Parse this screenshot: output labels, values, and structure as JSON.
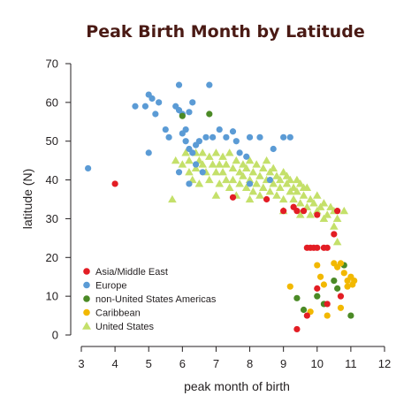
{
  "chart_data": {
    "type": "scatter",
    "title": "Peak Birth Month by Latitude",
    "xlabel": "peak month of birth",
    "ylabel": "latitude (N)",
    "xlim": [
      3,
      12
    ],
    "ylim": [
      0,
      70
    ],
    "xticks": [
      3,
      4,
      5,
      6,
      7,
      8,
      9,
      10,
      11,
      12
    ],
    "yticks": [
      0,
      10,
      20,
      30,
      40,
      50,
      60,
      70
    ],
    "grid": false,
    "legend": "bottom-left",
    "series": [
      {
        "name": "Asia/Middle East",
        "color": "#e31d24",
        "marker": "circle",
        "points": [
          [
            4.0,
            39
          ],
          [
            7.5,
            35.5
          ],
          [
            8.5,
            35
          ],
          [
            9.0,
            32
          ],
          [
            9.3,
            33
          ],
          [
            9.4,
            32
          ],
          [
            9.6,
            32
          ],
          [
            10.0,
            31
          ],
          [
            10.6,
            32
          ],
          [
            10.5,
            26
          ],
          [
            9.7,
            22.5
          ],
          [
            9.8,
            22.5
          ],
          [
            9.9,
            22.5
          ],
          [
            10.0,
            22.5
          ],
          [
            10.2,
            22.5
          ],
          [
            10.3,
            22.5
          ],
          [
            10.0,
            12
          ],
          [
            9.7,
            5
          ],
          [
            9.4,
            1.5
          ],
          [
            10.3,
            8
          ],
          [
            10.7,
            10
          ]
        ]
      },
      {
        "name": "Europe",
        "color": "#5b9bd5",
        "marker": "circle",
        "points": [
          [
            3.2,
            43
          ],
          [
            4.6,
            59
          ],
          [
            4.9,
            59
          ],
          [
            5.0,
            62
          ],
          [
            5.1,
            61
          ],
          [
            5.2,
            57
          ],
          [
            5.3,
            60
          ],
          [
            5.5,
            53
          ],
          [
            5.6,
            51
          ],
          [
            5.8,
            59
          ],
          [
            5.9,
            64.5
          ],
          [
            5.9,
            58
          ],
          [
            6.2,
            57.5
          ],
          [
            6.3,
            60
          ],
          [
            6.0,
            52
          ],
          [
            6.1,
            50
          ],
          [
            6.2,
            48
          ],
          [
            6.3,
            47
          ],
          [
            6.4,
            49
          ],
          [
            6.5,
            50
          ],
          [
            6.7,
            51
          ],
          [
            6.9,
            51
          ],
          [
            7.1,
            53
          ],
          [
            7.3,
            51
          ],
          [
            7.5,
            52.5
          ],
          [
            7.6,
            50
          ],
          [
            7.7,
            47
          ],
          [
            7.9,
            46
          ],
          [
            8.0,
            51
          ],
          [
            8.3,
            51
          ],
          [
            8.7,
            48
          ],
          [
            9.0,
            51
          ],
          [
            9.2,
            51
          ],
          [
            6.8,
            64.5
          ],
          [
            6.0,
            57
          ],
          [
            5.9,
            42
          ],
          [
            6.2,
            39
          ],
          [
            6.1,
            53
          ],
          [
            6.4,
            44
          ],
          [
            6.6,
            42
          ],
          [
            5.0,
            47
          ],
          [
            8.0,
            39
          ],
          [
            8.6,
            40
          ]
        ]
      },
      {
        "name": "non-United States Americas",
        "color": "#4b8a26",
        "marker": "circle",
        "points": [
          [
            6.0,
            56.5
          ],
          [
            6.8,
            57
          ],
          [
            9.4,
            9.5
          ],
          [
            9.6,
            6.5
          ],
          [
            10.0,
            10
          ],
          [
            10.2,
            8
          ],
          [
            10.5,
            14
          ],
          [
            10.6,
            12
          ],
          [
            10.8,
            18
          ],
          [
            11.0,
            5
          ]
        ]
      },
      {
        "name": "Caribbean",
        "color": "#f2b800",
        "marker": "circle",
        "points": [
          [
            9.2,
            12.5
          ],
          [
            9.8,
            6
          ],
          [
            10.0,
            18
          ],
          [
            10.1,
            15
          ],
          [
            10.2,
            13
          ],
          [
            10.3,
            5
          ],
          [
            10.5,
            18.5
          ],
          [
            10.6,
            17.5
          ],
          [
            10.7,
            18.5
          ],
          [
            10.8,
            16
          ],
          [
            10.9,
            14
          ],
          [
            11.0,
            15
          ],
          [
            11.05,
            13
          ],
          [
            11.1,
            14
          ],
          [
            10.7,
            7
          ],
          [
            10.9,
            12.5
          ]
        ]
      },
      {
        "name": "United States",
        "color": "#c4e06a",
        "marker": "triangle",
        "points": [
          [
            5.7,
            35
          ],
          [
            5.8,
            45
          ],
          [
            6.0,
            44
          ],
          [
            6.1,
            47
          ],
          [
            6.2,
            42
          ],
          [
            6.2,
            45
          ],
          [
            6.3,
            40
          ],
          [
            6.4,
            43
          ],
          [
            6.4,
            47
          ],
          [
            6.5,
            45
          ],
          [
            6.5,
            39
          ],
          [
            6.6,
            44
          ],
          [
            6.6,
            47
          ],
          [
            6.7,
            42
          ],
          [
            6.8,
            46
          ],
          [
            6.8,
            40
          ],
          [
            6.9,
            44
          ],
          [
            7.0,
            42
          ],
          [
            7.0,
            47
          ],
          [
            7.1,
            44
          ],
          [
            7.1,
            39
          ],
          [
            7.2,
            46
          ],
          [
            7.2,
            42
          ],
          [
            7.3,
            40
          ],
          [
            7.3,
            44
          ],
          [
            7.4,
            47
          ],
          [
            7.4,
            38
          ],
          [
            7.5,
            43
          ],
          [
            7.5,
            40
          ],
          [
            7.6,
            45
          ],
          [
            7.6,
            36
          ],
          [
            7.7,
            42
          ],
          [
            7.7,
            39
          ],
          [
            7.8,
            44
          ],
          [
            7.8,
            41
          ],
          [
            7.9,
            38
          ],
          [
            7.9,
            43
          ],
          [
            8.0,
            40
          ],
          [
            8.0,
            45
          ],
          [
            8.1,
            42
          ],
          [
            8.1,
            37
          ],
          [
            8.2,
            39
          ],
          [
            8.2,
            44
          ],
          [
            8.3,
            41
          ],
          [
            8.3,
            36
          ],
          [
            8.4,
            43
          ],
          [
            8.4,
            38
          ],
          [
            8.5,
            40
          ],
          [
            8.5,
            45
          ],
          [
            8.6,
            42
          ],
          [
            8.6,
            37
          ],
          [
            8.7,
            39
          ],
          [
            8.7,
            43
          ],
          [
            8.8,
            41
          ],
          [
            8.8,
            36
          ],
          [
            8.9,
            40
          ],
          [
            8.9,
            38
          ],
          [
            9.0,
            42
          ],
          [
            9.0,
            35
          ],
          [
            9.1,
            39
          ],
          [
            9.1,
            41
          ],
          [
            9.2,
            37
          ],
          [
            9.2,
            40
          ],
          [
            9.3,
            38
          ],
          [
            9.3,
            35
          ],
          [
            9.4,
            40
          ],
          [
            9.4,
            37
          ],
          [
            9.5,
            39
          ],
          [
            9.5,
            34
          ],
          [
            9.6,
            38
          ],
          [
            9.6,
            36
          ],
          [
            9.7,
            33
          ],
          [
            9.7,
            38
          ],
          [
            9.8,
            35
          ],
          [
            9.8,
            31
          ],
          [
            9.9,
            34
          ],
          [
            10.0,
            36
          ],
          [
            10.0,
            32
          ],
          [
            10.1,
            33
          ],
          [
            10.2,
            30
          ],
          [
            10.2,
            34
          ],
          [
            10.3,
            31
          ],
          [
            10.4,
            33
          ],
          [
            10.5,
            28
          ],
          [
            10.5,
            32
          ],
          [
            10.6,
            24
          ],
          [
            10.6,
            30
          ],
          [
            10.8,
            32
          ],
          [
            9.0,
            32
          ],
          [
            9.5,
            31
          ],
          [
            7.0,
            36
          ],
          [
            8.0,
            35
          ]
        ]
      }
    ]
  }
}
